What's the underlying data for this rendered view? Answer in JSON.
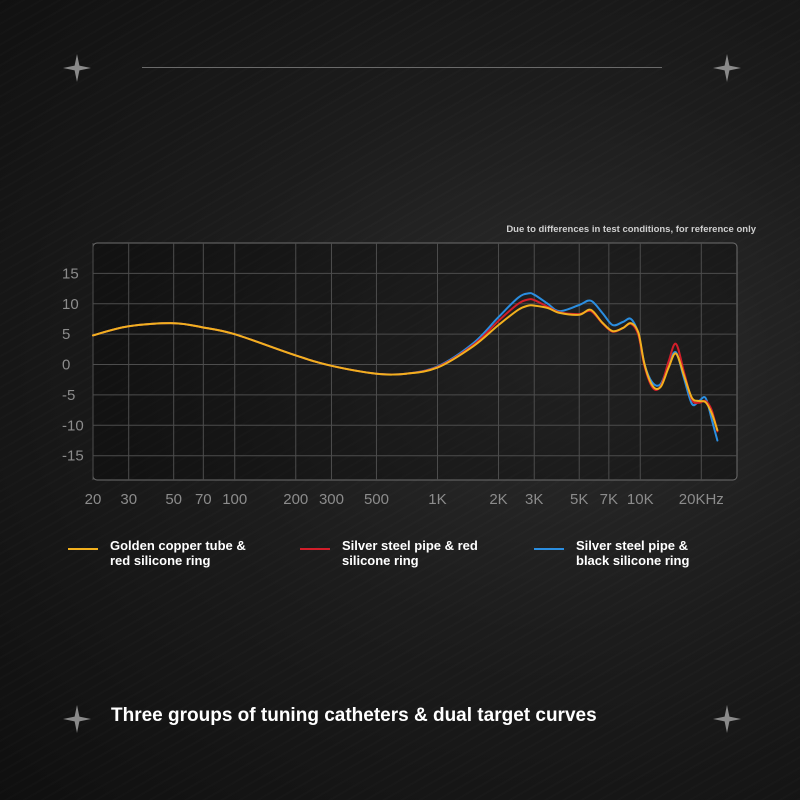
{
  "note": "Due to differences in test conditions, for reference only",
  "caption": "Three groups of tuning catheters & dual target curves",
  "chart_data": {
    "type": "line",
    "title": "",
    "xlabel": "",
    "ylabel": "",
    "x_scale": "log",
    "xlim": [
      20,
      30000
    ],
    "ylim": [
      -19,
      20
    ],
    "grid": true,
    "legend_position": "bottom",
    "y_ticks": [
      15,
      10,
      5,
      0,
      -5,
      -10,
      -15
    ],
    "x_ticks": [
      {
        "label": "20",
        "value": 20
      },
      {
        "label": "30",
        "value": 30
      },
      {
        "label": "50",
        "value": 50
      },
      {
        "label": "70",
        "value": 70
      },
      {
        "label": "100",
        "value": 100
      },
      {
        "label": "200",
        "value": 200
      },
      {
        "label": "300",
        "value": 300
      },
      {
        "label": "500",
        "value": 500
      },
      {
        "label": "1K",
        "value": 1000
      },
      {
        "label": "2K",
        "value": 2000
      },
      {
        "label": "3K",
        "value": 3000
      },
      {
        "label": "5K",
        "value": 5000
      },
      {
        "label": "7K",
        "value": 7000
      },
      {
        "label": "10K",
        "value": 10000
      },
      {
        "label": "20KHz",
        "value": 20000
      }
    ],
    "series": [
      {
        "name": "Golden copper tube &\nred silicone ring",
        "color": "#f2b01e",
        "x": [
          20,
          30,
          50,
          70,
          100,
          200,
          300,
          500,
          700,
          1000,
          1500,
          2000,
          2500,
          2800,
          3000,
          3500,
          4000,
          5000,
          5700,
          6500,
          7300,
          8200,
          9000,
          9800,
          10500,
          11500,
          12600,
          13800,
          15000,
          16500,
          18000,
          19500,
          21000,
          22500,
          24000
        ],
        "y": [
          4.8,
          6.3,
          6.8,
          6.1,
          5.0,
          1.5,
          -0.2,
          -1.5,
          -1.5,
          -0.5,
          3.0,
          6.5,
          9.0,
          9.7,
          9.7,
          9.3,
          8.5,
          8.2,
          9.0,
          6.9,
          5.5,
          6.0,
          6.8,
          5.2,
          0.0,
          -3.5,
          -3.7,
          -0.5,
          1.8,
          -2.0,
          -5.5,
          -6.0,
          -6.2,
          -8.0,
          -10.8
        ]
      },
      {
        "name": "Silver steel pipe & red\nsilicone ring",
        "color": "#d21e2a",
        "x": [
          20,
          30,
          50,
          70,
          100,
          200,
          300,
          500,
          700,
          1000,
          1500,
          2000,
          2500,
          2800,
          3000,
          3500,
          4000,
          5000,
          5700,
          6500,
          7300,
          8200,
          9000,
          9800,
          10500,
          11500,
          12600,
          13800,
          15000,
          16500,
          18000,
          19500,
          21000,
          22500,
          24000
        ],
        "y": [
          4.8,
          6.3,
          6.8,
          6.1,
          5.0,
          1.5,
          -0.2,
          -1.5,
          -1.5,
          -0.4,
          3.2,
          7.2,
          10.0,
          10.7,
          10.6,
          9.5,
          8.6,
          8.3,
          8.8,
          6.8,
          5.4,
          6.0,
          6.7,
          4.8,
          -0.3,
          -3.8,
          -3.6,
          0.5,
          3.4,
          -1.5,
          -5.8,
          -6.3,
          -6.0,
          -7.5,
          -11.0
        ]
      },
      {
        "name": "Silver steel pipe &\nblack silicone ring",
        "color": "#2b8ee0",
        "x": [
          20,
          30,
          50,
          70,
          100,
          200,
          300,
          500,
          700,
          1000,
          1500,
          2000,
          2500,
          2800,
          3000,
          3500,
          4000,
          5000,
          5700,
          6500,
          7300,
          8200,
          9000,
          9800,
          10500,
          11500,
          12600,
          13800,
          15000,
          16500,
          18000,
          19500,
          21000,
          22500,
          24000
        ],
        "y": [
          4.8,
          6.3,
          6.8,
          6.1,
          5.0,
          1.5,
          -0.2,
          -1.5,
          -1.5,
          -0.3,
          3.5,
          7.8,
          11.0,
          11.7,
          11.5,
          10.0,
          8.8,
          9.8,
          10.5,
          8.5,
          6.5,
          7.0,
          7.5,
          5.0,
          0.0,
          -3.0,
          -3.2,
          0.0,
          2.0,
          -2.5,
          -6.5,
          -6.0,
          -5.5,
          -9.0,
          -12.5
        ]
      }
    ]
  }
}
